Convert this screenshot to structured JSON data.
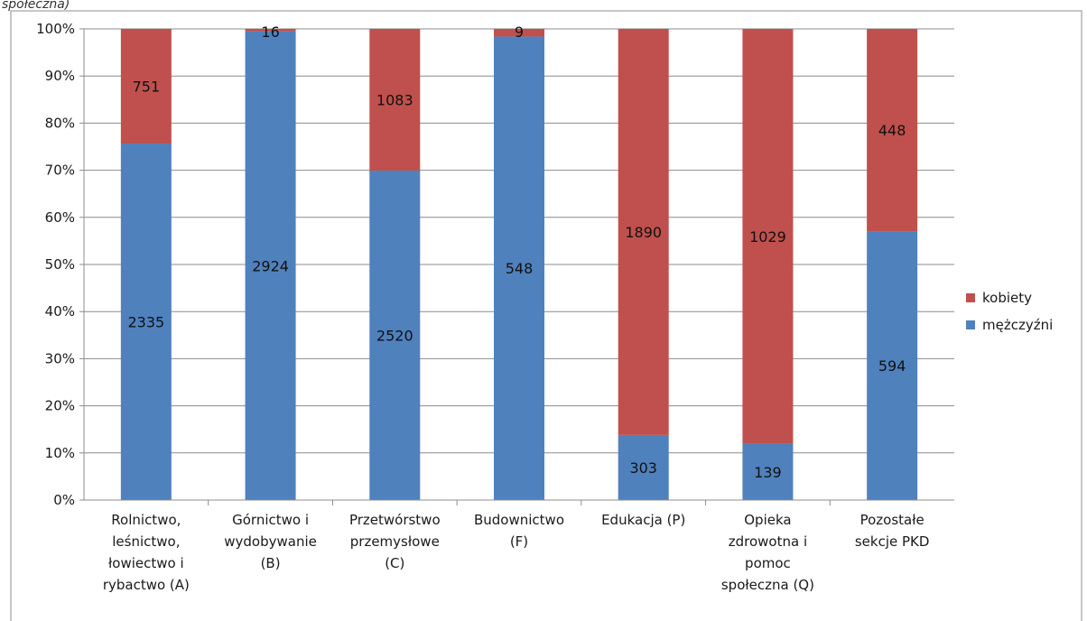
{
  "caption_fragment": "społeczna)",
  "chart_data": {
    "type": "bar",
    "stacked": true,
    "normalized": true,
    "categories": [
      [
        "Rolnictwo,",
        "leśnictwo,",
        "łowiectwo i",
        "rybactwo (A)"
      ],
      [
        "Górnictwo i",
        "wydobywanie",
        "(B)"
      ],
      [
        "Przetwórstwo",
        "przemysłowe",
        "(C)"
      ],
      [
        "Budownictwo",
        "(F)"
      ],
      [
        "Edukacja (P)"
      ],
      [
        "Opieka",
        "zdrowotna i",
        "pomoc",
        "społeczna (Q)"
      ],
      [
        "Pozostałe",
        "sekcje PKD"
      ]
    ],
    "series": [
      {
        "name": "mężczyźni",
        "color": "#4f81bd",
        "values": [
          2335,
          2924,
          2520,
          548,
          303,
          139,
          594
        ]
      },
      {
        "name": "kobiety",
        "color": "#c0504d",
        "values": [
          751,
          16,
          1083,
          9,
          1890,
          1029,
          448
        ]
      }
    ],
    "yticks": [
      "0%",
      "10%",
      "20%",
      "30%",
      "40%",
      "50%",
      "60%",
      "70%",
      "80%",
      "90%",
      "100%"
    ],
    "ylim": [
      0,
      100
    ],
    "grid": true,
    "legend_position": "right",
    "legend_order": [
      "kobiety",
      "mężczyźni"
    ]
  }
}
